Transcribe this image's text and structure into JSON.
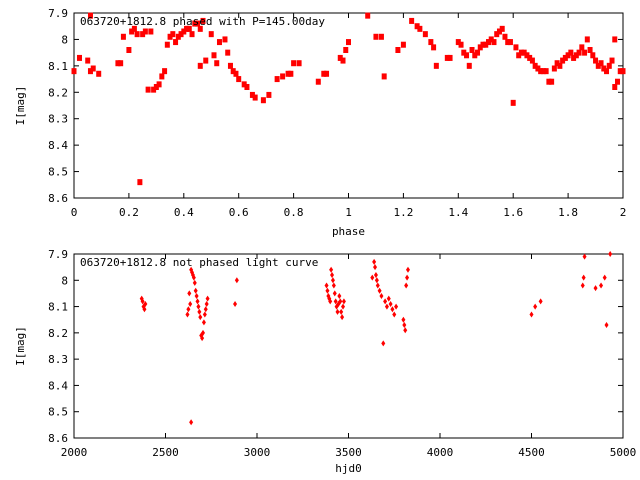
{
  "colors": {
    "points": "#ff0000",
    "frame": "#000000",
    "background": "#ffffff"
  },
  "chart_data": [
    {
      "type": "scatter",
      "title": "063720+1812.8 phased with P=145.00day",
      "xlabel": "phase",
      "ylabel": "I[mag]",
      "xlim": [
        0,
        2
      ],
      "ylim": [
        7.9,
        8.6
      ],
      "y_inverted": true,
      "grid": false,
      "x_ticks": [
        "0",
        "0.2",
        "0.4",
        "0.6",
        "0.8",
        "1",
        "1.2",
        "1.4",
        "1.6",
        "1.8",
        "2"
      ],
      "y_ticks": [
        "7.9",
        "8",
        "8.1",
        "8.2",
        "8.3",
        "8.4",
        "8.5",
        "8.6"
      ],
      "points": [
        [
          0.0,
          8.12
        ],
        [
          0.02,
          8.07
        ],
        [
          0.05,
          8.08
        ],
        [
          0.06,
          8.12
        ],
        [
          0.06,
          7.91
        ],
        [
          0.07,
          8.11
        ],
        [
          0.09,
          8.13
        ],
        [
          0.16,
          8.09
        ],
        [
          0.17,
          8.09
        ],
        [
          0.18,
          7.99
        ],
        [
          0.2,
          8.04
        ],
        [
          0.21,
          7.97
        ],
        [
          0.22,
          7.96
        ],
        [
          0.23,
          7.98
        ],
        [
          0.24,
          8.54
        ],
        [
          0.25,
          7.98
        ],
        [
          0.26,
          7.97
        ],
        [
          0.27,
          8.19
        ],
        [
          0.28,
          7.97
        ],
        [
          0.29,
          8.19
        ],
        [
          0.3,
          8.18
        ],
        [
          0.31,
          8.17
        ],
        [
          0.32,
          8.14
        ],
        [
          0.33,
          8.12
        ],
        [
          0.34,
          8.02
        ],
        [
          0.35,
          7.99
        ],
        [
          0.36,
          7.98
        ],
        [
          0.37,
          8.01
        ],
        [
          0.38,
          7.99
        ],
        [
          0.39,
          7.98
        ],
        [
          0.4,
          7.97
        ],
        [
          0.41,
          7.96
        ],
        [
          0.42,
          7.96
        ],
        [
          0.43,
          7.98
        ],
        [
          0.44,
          7.94
        ],
        [
          0.45,
          7.94
        ],
        [
          0.46,
          7.96
        ],
        [
          0.46,
          8.1
        ],
        [
          0.47,
          7.93
        ],
        [
          0.48,
          8.08
        ],
        [
          0.5,
          7.98
        ],
        [
          0.51,
          8.06
        ],
        [
          0.52,
          8.09
        ],
        [
          0.53,
          8.01
        ],
        [
          0.55,
          8.0
        ],
        [
          0.56,
          8.05
        ],
        [
          0.57,
          8.1
        ],
        [
          0.58,
          8.12
        ],
        [
          0.59,
          8.13
        ],
        [
          0.6,
          8.15
        ],
        [
          0.62,
          8.17
        ],
        [
          0.63,
          8.18
        ],
        [
          0.65,
          8.21
        ],
        [
          0.66,
          8.22
        ],
        [
          0.69,
          8.23
        ],
        [
          0.71,
          8.21
        ],
        [
          0.74,
          8.15
        ],
        [
          0.76,
          8.14
        ],
        [
          0.78,
          8.13
        ],
        [
          0.79,
          8.13
        ],
        [
          0.8,
          8.09
        ],
        [
          0.82,
          8.09
        ],
        [
          0.89,
          8.16
        ],
        [
          0.91,
          8.13
        ],
        [
          0.92,
          8.13
        ],
        [
          0.97,
          8.07
        ],
        [
          0.98,
          8.08
        ],
        [
          0.99,
          8.04
        ],
        [
          1.0,
          8.01
        ],
        [
          1.07,
          7.91
        ],
        [
          1.1,
          7.99
        ],
        [
          1.12,
          7.99
        ],
        [
          1.13,
          8.14
        ],
        [
          1.18,
          8.04
        ],
        [
          1.2,
          8.02
        ],
        [
          1.23,
          7.93
        ],
        [
          1.25,
          7.95
        ],
        [
          1.26,
          7.96
        ],
        [
          1.28,
          7.98
        ],
        [
          1.3,
          8.01
        ],
        [
          1.31,
          8.03
        ],
        [
          1.32,
          8.1
        ],
        [
          1.36,
          8.07
        ],
        [
          1.37,
          8.07
        ],
        [
          1.4,
          8.01
        ],
        [
          1.41,
          8.02
        ],
        [
          1.42,
          8.05
        ],
        [
          1.43,
          8.06
        ],
        [
          1.44,
          8.1
        ],
        [
          1.45,
          8.04
        ],
        [
          1.46,
          8.06
        ],
        [
          1.47,
          8.05
        ],
        [
          1.48,
          8.03
        ],
        [
          1.49,
          8.02
        ],
        [
          1.5,
          8.02
        ],
        [
          1.51,
          8.01
        ],
        [
          1.52,
          8.0
        ],
        [
          1.53,
          8.01
        ],
        [
          1.54,
          7.98
        ],
        [
          1.55,
          7.97
        ],
        [
          1.56,
          7.96
        ],
        [
          1.57,
          7.99
        ],
        [
          1.58,
          8.01
        ],
        [
          1.59,
          8.01
        ],
        [
          1.6,
          8.24
        ],
        [
          1.61,
          8.03
        ],
        [
          1.62,
          8.06
        ],
        [
          1.63,
          8.05
        ],
        [
          1.64,
          8.05
        ],
        [
          1.65,
          8.06
        ],
        [
          1.66,
          8.07
        ],
        [
          1.67,
          8.08
        ],
        [
          1.68,
          8.1
        ],
        [
          1.69,
          8.11
        ],
        [
          1.7,
          8.12
        ],
        [
          1.71,
          8.12
        ],
        [
          1.72,
          8.12
        ],
        [
          1.73,
          8.16
        ],
        [
          1.74,
          8.16
        ],
        [
          1.75,
          8.11
        ],
        [
          1.76,
          8.09
        ],
        [
          1.77,
          8.1
        ],
        [
          1.78,
          8.08
        ],
        [
          1.79,
          8.07
        ],
        [
          1.8,
          8.06
        ],
        [
          1.81,
          8.05
        ],
        [
          1.82,
          8.07
        ],
        [
          1.83,
          8.06
        ],
        [
          1.84,
          8.05
        ],
        [
          1.85,
          8.03
        ],
        [
          1.86,
          8.05
        ],
        [
          1.87,
          8.0
        ],
        [
          1.88,
          8.04
        ],
        [
          1.89,
          8.06
        ],
        [
          1.9,
          8.08
        ],
        [
          1.91,
          8.1
        ],
        [
          1.92,
          8.09
        ],
        [
          1.93,
          8.11
        ],
        [
          1.94,
          8.12
        ],
        [
          1.95,
          8.1
        ],
        [
          1.96,
          8.08
        ],
        [
          1.97,
          8.0
        ],
        [
          1.97,
          8.18
        ],
        [
          1.98,
          8.16
        ],
        [
          1.99,
          8.12
        ],
        [
          2.0,
          8.12
        ]
      ]
    },
    {
      "type": "scatter",
      "title": "063720+1812.8 not phased light curve",
      "xlabel": "hjd0",
      "ylabel": "I[mag]",
      "xlim": [
        2000,
        5000
      ],
      "ylim": [
        7.9,
        8.6
      ],
      "y_inverted": true,
      "grid": false,
      "x_ticks": [
        "2000",
        "2500",
        "3000",
        "3500",
        "4000",
        "4500",
        "5000"
      ],
      "y_ticks": [
        "7.9",
        "8",
        "8.1",
        "8.2",
        "8.3",
        "8.4",
        "8.5",
        "8.6"
      ],
      "points": [
        [
          2370,
          8.07
        ],
        [
          2375,
          8.08
        ],
        [
          2380,
          8.1
        ],
        [
          2385,
          8.11
        ],
        [
          2390,
          8.09
        ],
        [
          2620,
          8.13
        ],
        [
          2625,
          8.11
        ],
        [
          2630,
          8.05
        ],
        [
          2635,
          8.09
        ],
        [
          2640,
          8.54
        ],
        [
          2640,
          7.96
        ],
        [
          2645,
          7.97
        ],
        [
          2650,
          7.98
        ],
        [
          2655,
          7.99
        ],
        [
          2660,
          8.01
        ],
        [
          2665,
          8.04
        ],
        [
          2670,
          8.06
        ],
        [
          2675,
          8.08
        ],
        [
          2680,
          8.1
        ],
        [
          2685,
          8.12
        ],
        [
          2690,
          8.14
        ],
        [
          2695,
          8.21
        ],
        [
          2700,
          8.22
        ],
        [
          2705,
          8.2
        ],
        [
          2710,
          8.16
        ],
        [
          2715,
          8.13
        ],
        [
          2720,
          8.11
        ],
        [
          2725,
          8.09
        ],
        [
          2730,
          8.07
        ],
        [
          2880,
          8.09
        ],
        [
          2890,
          8.0
        ],
        [
          3380,
          8.02
        ],
        [
          3385,
          8.04
        ],
        [
          3390,
          8.06
        ],
        [
          3395,
          8.07
        ],
        [
          3400,
          8.08
        ],
        [
          3405,
          7.96
        ],
        [
          3410,
          7.98
        ],
        [
          3415,
          8.0
        ],
        [
          3420,
          8.02
        ],
        [
          3425,
          8.05
        ],
        [
          3430,
          8.08
        ],
        [
          3435,
          8.1
        ],
        [
          3440,
          8.12
        ],
        [
          3445,
          8.09
        ],
        [
          3450,
          8.06
        ],
        [
          3455,
          8.08
        ],
        [
          3460,
          8.12
        ],
        [
          3465,
          8.14
        ],
        [
          3470,
          8.1
        ],
        [
          3475,
          8.08
        ],
        [
          3630,
          7.99
        ],
        [
          3640,
          7.93
        ],
        [
          3645,
          7.95
        ],
        [
          3650,
          7.98
        ],
        [
          3655,
          8.0
        ],
        [
          3660,
          8.02
        ],
        [
          3670,
          8.04
        ],
        [
          3680,
          8.06
        ],
        [
          3690,
          8.24
        ],
        [
          3700,
          8.08
        ],
        [
          3710,
          8.1
        ],
        [
          3720,
          8.07
        ],
        [
          3730,
          8.09
        ],
        [
          3740,
          8.11
        ],
        [
          3750,
          8.13
        ],
        [
          3760,
          8.1
        ],
        [
          3800,
          8.15
        ],
        [
          3805,
          8.17
        ],
        [
          3810,
          8.19
        ],
        [
          3815,
          8.02
        ],
        [
          3820,
          7.99
        ],
        [
          3825,
          7.96
        ],
        [
          4500,
          8.13
        ],
        [
          4520,
          8.1
        ],
        [
          4550,
          8.08
        ],
        [
          4780,
          8.02
        ],
        [
          4785,
          7.99
        ],
        [
          4790,
          7.91
        ],
        [
          4850,
          8.03
        ],
        [
          4880,
          8.02
        ],
        [
          4900,
          7.99
        ],
        [
          4910,
          8.17
        ],
        [
          4930,
          7.9
        ]
      ]
    }
  ]
}
